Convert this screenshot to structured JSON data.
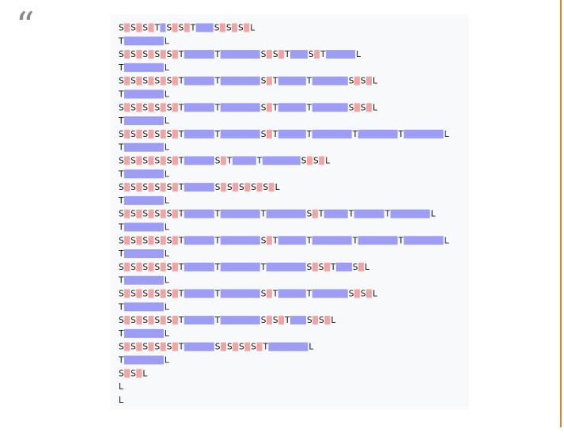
{
  "quote_mark": "“",
  "rows": [
    {
      "tokens": [
        "S",
        "S",
        "S",
        "T",
        "S",
        "S",
        "T",
        "S",
        "S",
        "S",
        "L"
      ],
      "spans": [
        null,
        null,
        null,
        7,
        null,
        null,
        22,
        null,
        null,
        null,
        null
      ]
    },
    {
      "tokens": [
        "T",
        "L"
      ],
      "spans": [
        50,
        null
      ]
    },
    {
      "tokens": [
        "S",
        "S",
        "S",
        "S",
        "S",
        "T",
        "T",
        "S",
        "S",
        "T",
        "S",
        "T",
        "L"
      ],
      "spans": [
        null,
        null,
        null,
        null,
        null,
        38,
        50,
        null,
        null,
        22,
        null,
        37,
        null
      ]
    },
    {
      "tokens": [
        "T",
        "L"
      ],
      "spans": [
        50,
        null
      ]
    },
    {
      "tokens": [
        "S",
        "S",
        "S",
        "S",
        "S",
        "T",
        "T",
        "S",
        "T",
        "T",
        "S",
        "S",
        "L"
      ],
      "spans": [
        null,
        null,
        null,
        null,
        null,
        38,
        50,
        null,
        35,
        45,
        null,
        null,
        null
      ]
    },
    {
      "tokens": [
        "T",
        "L"
      ],
      "spans": [
        50,
        null
      ]
    },
    {
      "tokens": [
        "S",
        "S",
        "S",
        "S",
        "S",
        "T",
        "T",
        "S",
        "T",
        "T",
        "S",
        "S",
        "L"
      ],
      "spans": [
        null,
        null,
        null,
        null,
        null,
        38,
        50,
        null,
        35,
        45,
        null,
        null,
        null
      ]
    },
    {
      "tokens": [
        "T",
        "L"
      ],
      "spans": [
        50,
        null
      ]
    },
    {
      "tokens": [
        "S",
        "S",
        "S",
        "S",
        "S",
        "T",
        "T",
        "S",
        "T",
        "T",
        "T",
        "T",
        "L"
      ],
      "spans": [
        null,
        null,
        null,
        null,
        null,
        38,
        50,
        null,
        35,
        50,
        50,
        50,
        null
      ]
    },
    {
      "tokens": [
        "T",
        "L"
      ],
      "spans": [
        50,
        null
      ]
    },
    {
      "tokens": [
        "S",
        "S",
        "S",
        "S",
        "S",
        "T",
        "S",
        "T",
        "T",
        "S",
        "S",
        "L"
      ],
      "spans": [
        null,
        null,
        null,
        null,
        null,
        38,
        null,
        30,
        48,
        null,
        null,
        null
      ]
    },
    {
      "tokens": [
        "T",
        "L"
      ],
      "spans": [
        50,
        null
      ]
    },
    {
      "tokens": [
        "S",
        "S",
        "S",
        "S",
        "S",
        "T",
        "S",
        "S",
        "S",
        "S",
        "S",
        "L"
      ],
      "spans": [
        null,
        null,
        null,
        null,
        null,
        38,
        null,
        null,
        null,
        null,
        null,
        null
      ]
    },
    {
      "tokens": [
        "T",
        "L"
      ],
      "spans": [
        50,
        null
      ]
    },
    {
      "tokens": [
        "S",
        "S",
        "S",
        "S",
        "S",
        "T",
        "T",
        "T",
        "S",
        "T",
        "T",
        "T",
        "L"
      ],
      "spans": [
        null,
        null,
        null,
        null,
        null,
        38,
        50,
        50,
        null,
        30,
        38,
        50,
        null
      ]
    },
    {
      "tokens": [
        "T",
        "L"
      ],
      "spans": [
        50,
        null
      ]
    },
    {
      "tokens": [
        "S",
        "S",
        "S",
        "S",
        "S",
        "T",
        "T",
        "S",
        "T",
        "T",
        "T",
        "T",
        "L"
      ],
      "spans": [
        null,
        null,
        null,
        null,
        null,
        38,
        50,
        null,
        35,
        50,
        50,
        50,
        null
      ]
    },
    {
      "tokens": [
        "T",
        "L"
      ],
      "spans": [
        50,
        null
      ]
    },
    {
      "tokens": [
        "S",
        "S",
        "S",
        "S",
        "S",
        "T",
        "T",
        "T",
        "S",
        "S",
        "T",
        "S",
        "L"
      ],
      "spans": [
        null,
        null,
        null,
        null,
        null,
        38,
        50,
        50,
        null,
        null,
        20,
        null,
        null
      ]
    },
    {
      "tokens": [
        "T",
        "L"
      ],
      "spans": [
        50,
        null
      ]
    },
    {
      "tokens": [
        "S",
        "S",
        "S",
        "S",
        "S",
        "T",
        "T",
        "S",
        "T",
        "T",
        "S",
        "S",
        "L"
      ],
      "spans": [
        null,
        null,
        null,
        null,
        null,
        38,
        50,
        null,
        35,
        45,
        null,
        null,
        null
      ]
    },
    {
      "tokens": [
        "T",
        "L"
      ],
      "spans": [
        50,
        null
      ]
    },
    {
      "tokens": [
        "S",
        "S",
        "S",
        "S",
        "S",
        "T",
        "T",
        "S",
        "S",
        "T",
        "S",
        "S",
        "L"
      ],
      "spans": [
        null,
        null,
        null,
        null,
        null,
        38,
        50,
        null,
        null,
        20,
        null,
        null,
        null
      ]
    },
    {
      "tokens": [
        "T",
        "L"
      ],
      "spans": [
        50,
        null
      ]
    },
    {
      "tokens": [
        "S",
        "S",
        "S",
        "S",
        "S",
        "T",
        "S",
        "S",
        "S",
        "S",
        "T",
        "L"
      ],
      "spans": [
        null,
        null,
        null,
        null,
        null,
        38,
        null,
        null,
        null,
        null,
        50,
        null
      ]
    },
    {
      "tokens": [
        "T",
        "L"
      ],
      "spans": [
        50,
        null
      ]
    },
    {
      "tokens": [
        "S",
        "S",
        "L"
      ],
      "spans": [
        null,
        null,
        null
      ]
    },
    {
      "tokens": [
        "L"
      ],
      "spans": [
        null
      ]
    },
    {
      "tokens": [
        "L"
      ],
      "spans": [
        null
      ]
    }
  ]
}
